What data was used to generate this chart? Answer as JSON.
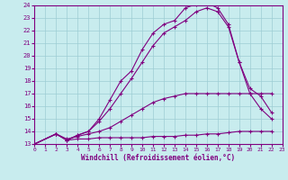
{
  "xlabel": "Windchill (Refroidissement éolien,°C)",
  "bg_color": "#c8ecee",
  "line_color": "#800080",
  "grid_color": "#9dcdd4",
  "xlim": [
    0,
    23
  ],
  "ylim": [
    13,
    24
  ],
  "xticks": [
    0,
    1,
    2,
    3,
    4,
    5,
    6,
    7,
    8,
    9,
    10,
    11,
    12,
    13,
    14,
    15,
    16,
    17,
    18,
    19,
    20,
    21,
    22,
    23
  ],
  "yticks": [
    13,
    14,
    15,
    16,
    17,
    18,
    19,
    20,
    21,
    22,
    23,
    24
  ],
  "c1x": [
    0,
    2,
    3,
    4,
    5,
    6,
    7,
    8,
    9,
    10,
    11,
    12,
    13,
    14,
    15,
    16,
    17,
    18,
    19,
    20,
    21,
    22
  ],
  "c1y": [
    13,
    13.8,
    13.3,
    13.4,
    13.4,
    13.5,
    13.5,
    13.5,
    13.5,
    13.5,
    13.6,
    13.6,
    13.6,
    13.7,
    13.7,
    13.8,
    13.8,
    13.9,
    14.0,
    14.0,
    14.0,
    14.0
  ],
  "c2x": [
    0,
    2,
    3,
    4,
    5,
    6,
    7,
    8,
    9,
    10,
    11,
    12,
    13,
    14,
    15,
    16,
    17,
    18,
    19,
    20,
    21,
    22
  ],
  "c2y": [
    13,
    13.8,
    13.4,
    13.6,
    13.8,
    14.0,
    14.3,
    14.8,
    15.3,
    15.8,
    16.3,
    16.6,
    16.8,
    17.0,
    17.0,
    17.0,
    17.0,
    17.0,
    17.0,
    17.0,
    17.0,
    17.0
  ],
  "c3x": [
    0,
    2,
    3,
    4,
    5,
    6,
    7,
    8,
    9,
    10,
    11,
    12,
    13,
    14,
    15,
    16,
    17,
    18,
    19,
    20,
    21,
    22
  ],
  "c3y": [
    13,
    13.8,
    13.3,
    13.7,
    14.0,
    14.8,
    15.8,
    17.0,
    18.2,
    19.5,
    20.8,
    21.8,
    22.3,
    22.8,
    23.5,
    23.8,
    23.5,
    22.3,
    19.5,
    17.4,
    16.8,
    15.5
  ],
  "c4x": [
    0,
    2,
    3,
    4,
    5,
    6,
    7,
    8,
    9,
    10,
    11,
    12,
    13,
    14,
    15,
    16,
    17,
    18,
    19,
    20,
    21,
    22
  ],
  "c4y": [
    13,
    13.8,
    13.3,
    13.7,
    14.0,
    15.0,
    16.5,
    18.0,
    18.8,
    20.5,
    21.8,
    22.5,
    22.8,
    23.8,
    24.1,
    24.2,
    23.8,
    22.5,
    19.5,
    17.0,
    15.8,
    15.0
  ]
}
